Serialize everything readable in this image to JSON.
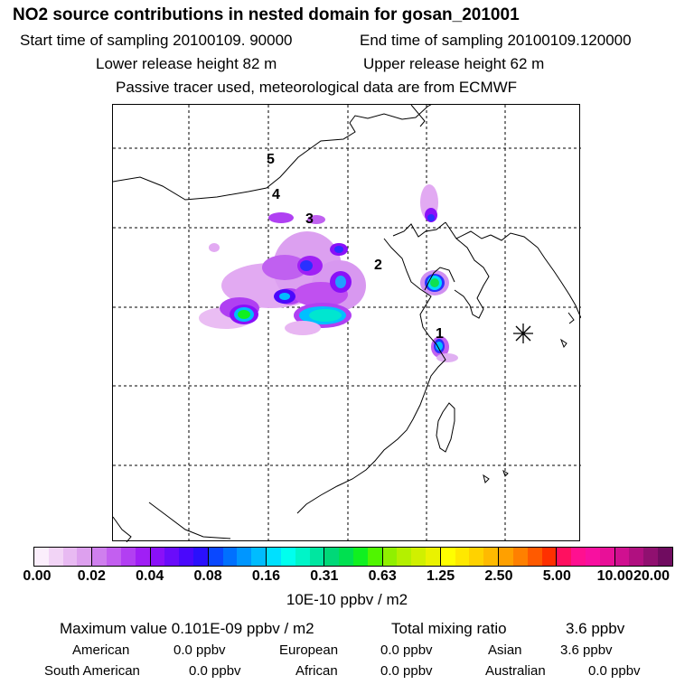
{
  "header": {
    "title": "NO2 source contributions in nested domain for gosan_201001",
    "start_label": "Start time of sampling 20100109. 90000",
    "end_label": "End time of sampling 20100109.120000",
    "lower_release": "Lower release height   82 m",
    "upper_release": "Upper release height   62 m",
    "tracer_note": "Passive tracer used, meteorological data are from ECMWF"
  },
  "map": {
    "labels": [
      "5",
      "4",
      "3",
      "2",
      "1"
    ],
    "receptor_marker": "asterisk-icon"
  },
  "colorbar": {
    "ticks": [
      "0.00",
      "0.02",
      "0.04",
      "0.08",
      "0.16",
      "0.31",
      "0.63",
      "1.25",
      "2.50",
      "5.00",
      "10.00",
      "20.00"
    ],
    "units": "10E-10 ppbv / m2",
    "segments": [
      [
        "#fbeefc",
        "#f2d4f6",
        "#e8baf2",
        "#dda0ee"
      ],
      [
        "#cf7fee",
        "#c35ff0",
        "#b23ff2",
        "#a01ff5"
      ],
      [
        "#8a10f8",
        "#6a0cfa",
        "#4a08fc",
        "#2a10fd"
      ],
      [
        "#0a48ff",
        "#0070ff",
        "#0096ff",
        "#00bcff"
      ],
      [
        "#00e0ff",
        "#00ffee",
        "#00f5c8",
        "#00e6a0"
      ],
      [
        "#00d878",
        "#00e050",
        "#10f020",
        "#50f500"
      ],
      [
        "#90f000",
        "#b4f000",
        "#d0f000",
        "#eaf200"
      ],
      [
        "#ffff00",
        "#ffe800",
        "#ffd200",
        "#ffba00"
      ],
      [
        "#ffa000",
        "#ff8000",
        "#ff5a00",
        "#ff3000"
      ],
      [
        "#ff1060",
        "#ff1090",
        "#f810a0",
        "#e81098"
      ],
      [
        "#d01090",
        "#b01080",
        "#901070",
        "#700c60"
      ]
    ]
  },
  "stats": {
    "max_label": "Maximum value  0.101E-09 ppbv / m2",
    "total_label": "Total mixing ratio",
    "total_value": "3.6 ppbv",
    "regions": [
      {
        "name": "American",
        "value": "0.0 ppbv"
      },
      {
        "name": "European",
        "value": "0.0 ppbv"
      },
      {
        "name": "Asian",
        "value": "3.6 ppbv"
      },
      {
        "name": "South American",
        "value": "0.0 ppbv"
      },
      {
        "name": "African",
        "value": "0.0 ppbv"
      },
      {
        "name": "Australian",
        "value": "0.0 ppbv"
      }
    ]
  }
}
